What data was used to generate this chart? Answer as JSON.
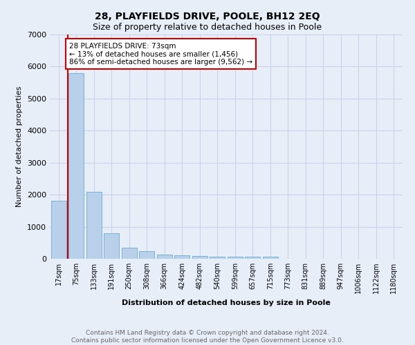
{
  "title": "28, PLAYFIELDS DRIVE, POOLE, BH12 2EQ",
  "subtitle": "Size of property relative to detached houses in Poole",
  "xlabel": "Distribution of detached houses by size in Poole",
  "ylabel": "Number of detached properties",
  "footer_line1": "Contains HM Land Registry data © Crown copyright and database right 2024.",
  "footer_line2": "Contains public sector information licensed under the Open Government Licence v3.0.",
  "bar_labels": [
    "17sqm",
    "75sqm",
    "133sqm",
    "191sqm",
    "250sqm",
    "308sqm",
    "366sqm",
    "424sqm",
    "482sqm",
    "540sqm",
    "599sqm",
    "657sqm",
    "715sqm",
    "773sqm",
    "831sqm",
    "889sqm",
    "947sqm",
    "1006sqm",
    "1122sqm",
    "1180sqm"
  ],
  "bar_values": [
    1800,
    5800,
    2080,
    800,
    350,
    230,
    130,
    110,
    80,
    60,
    55,
    55,
    55,
    0,
    0,
    0,
    0,
    0,
    0,
    0
  ],
  "bar_color": "#b8d0ea",
  "bar_edge_color": "#6aaad4",
  "ylim": [
    0,
    7000
  ],
  "yticks": [
    0,
    1000,
    2000,
    3000,
    4000,
    5000,
    6000,
    7000
  ],
  "property_line_x": 0.5,
  "annotation_text": "28 PLAYFIELDS DRIVE: 73sqm\n← 13% of detached houses are smaller (1,456)\n86% of semi-detached houses are larger (9,562) →",
  "annotation_box_color": "#ffffff",
  "annotation_box_edge": "#cc0000",
  "grid_color": "#c8d4e8",
  "bg_color": "#e8eef8",
  "title_fontsize": 10,
  "subtitle_fontsize": 9,
  "xlabel_fontsize": 8,
  "ylabel_fontsize": 8,
  "tick_fontsize": 7,
  "annotation_fontsize": 7.5,
  "footer_fontsize": 6.5
}
